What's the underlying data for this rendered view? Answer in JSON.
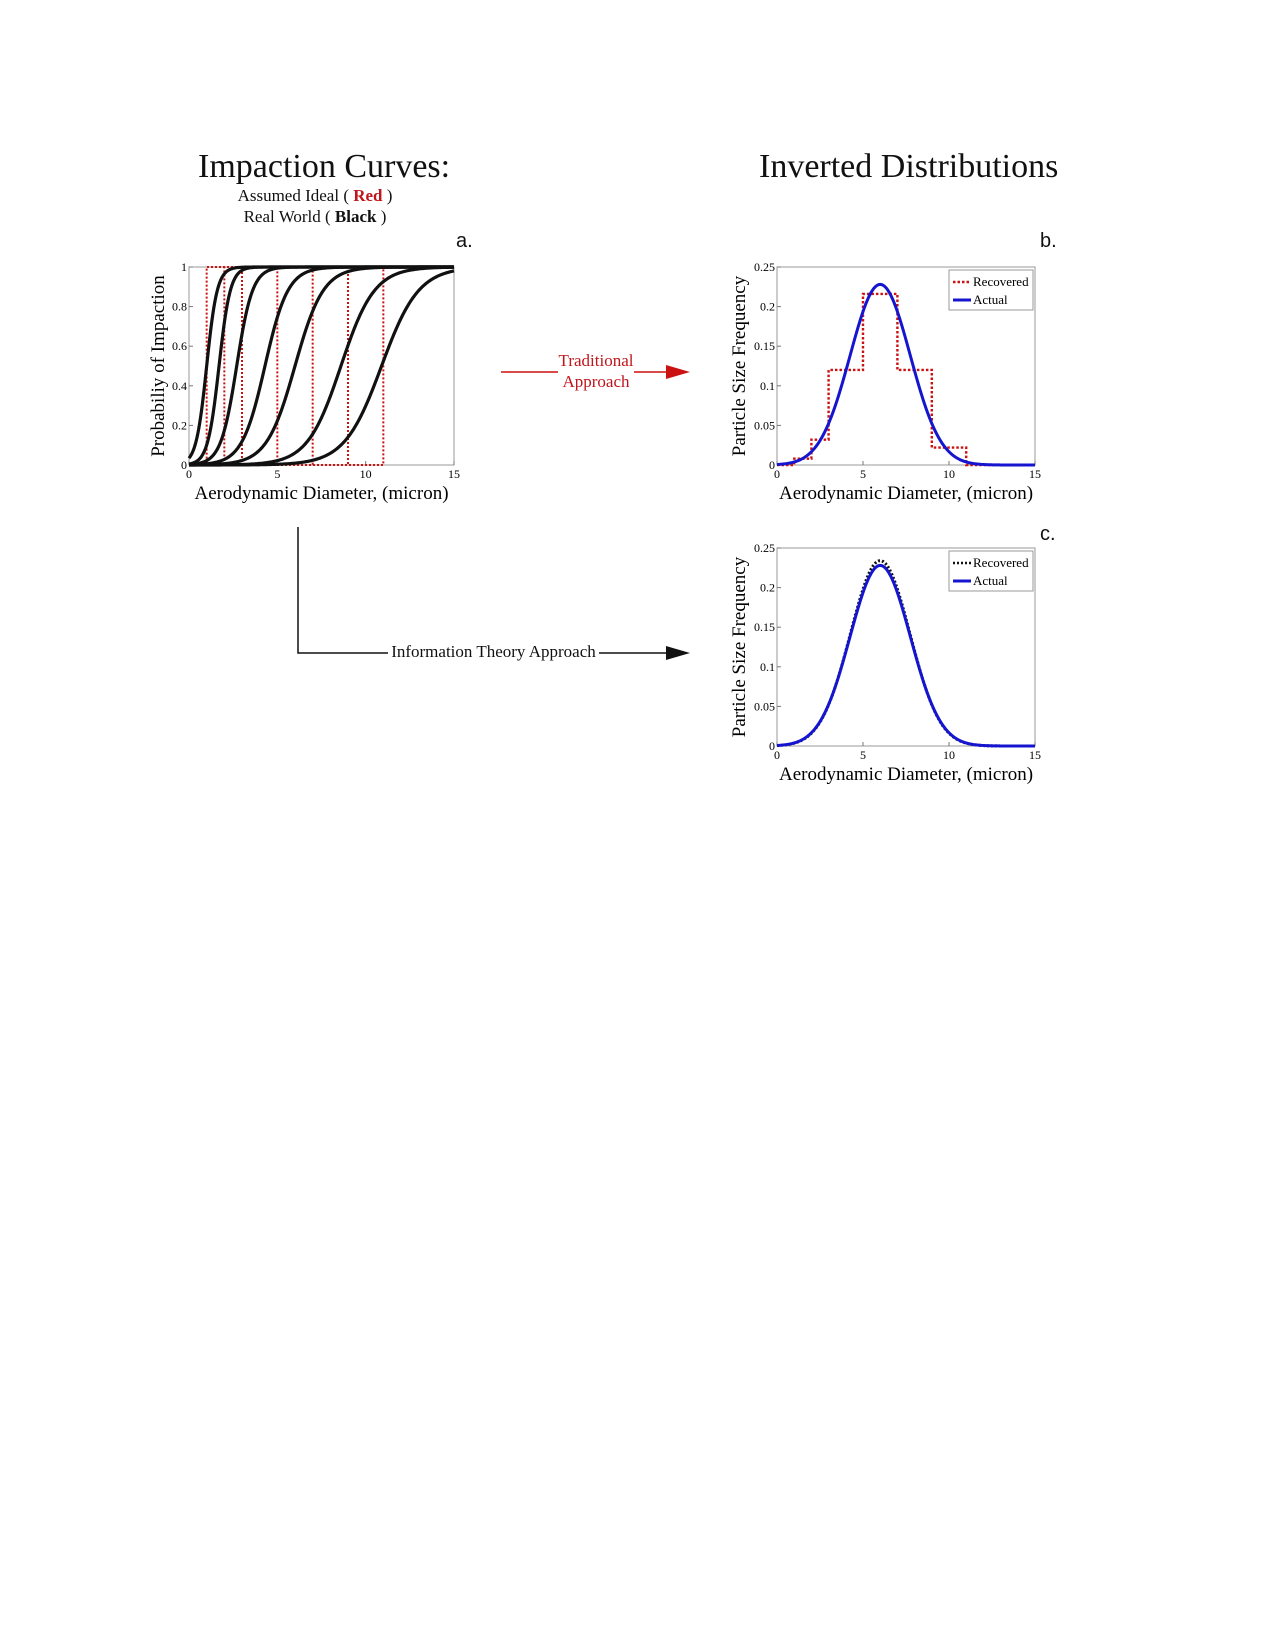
{
  "headings": {
    "left_title": "Impaction Curves:",
    "left_line1_prefix": "Assumed Ideal ( ",
    "left_line1_bold": "Red",
    "left_line1_suffix": " )",
    "left_line2_prefix": "Real World ( ",
    "left_line2_bold": "Black",
    "left_line2_suffix": " )",
    "right_title": "Inverted Distributions"
  },
  "arrows": {
    "traditional_line1": "Traditional",
    "traditional_line2": "Approach",
    "information": "Information Theory Approach"
  },
  "colors": {
    "red": "#cc1111",
    "blue": "#1515d0",
    "black": "#111111",
    "text_red": "#c0151b"
  },
  "chart_data": [
    {
      "id": "a",
      "panel_label": "a.",
      "type": "line",
      "xlabel": "Aerodynamic Diameter, (micron)",
      "ylabel": "Probabiliy of Impaction",
      "xlim": [
        0,
        15
      ],
      "ylim": [
        0,
        1
      ],
      "xticks": [
        0,
        5,
        10,
        15
      ],
      "yticks": [
        0,
        0.2,
        0.4,
        0.6,
        0.8,
        1
      ],
      "grid": false,
      "series": [
        {
          "style": "red-dotted-step",
          "cutoffs": [
            1,
            2,
            3,
            5,
            7,
            9,
            11
          ]
        },
        {
          "style": "black-sigmoid",
          "d50": [
            1,
            1.7,
            2.7,
            4.3,
            6,
            8.6,
            10.9
          ],
          "widths": [
            0.3,
            0.32,
            0.45,
            0.65,
            0.8,
            0.95,
            1.05
          ]
        }
      ]
    },
    {
      "id": "b",
      "panel_label": "b.",
      "type": "line",
      "xlabel": "Aerodynamic Diameter, (micron)",
      "ylabel": "Particle Size Frequency",
      "xlim": [
        0,
        15
      ],
      "ylim": [
        0,
        0.25
      ],
      "xticks": [
        0,
        5,
        10,
        15
      ],
      "yticks": [
        0,
        0.05,
        0.1,
        0.15,
        0.2,
        0.25
      ],
      "legend_position": "top-right",
      "series": [
        {
          "name": "Recovered",
          "style": "red-dotted",
          "edges": [
            0,
            1,
            2,
            3,
            5,
            7,
            9,
            11,
            15
          ],
          "values": [
            0.0,
            0.008,
            0.032,
            0.12,
            0.216,
            0.12,
            0.022,
            0.0
          ]
        },
        {
          "name": "Actual",
          "style": "blue-solid",
          "mean": 6,
          "sd": 1.75,
          "peak": 0.228
        }
      ]
    },
    {
      "id": "c",
      "panel_label": "c.",
      "type": "line",
      "xlabel": "Aerodynamic Diameter, (micron)",
      "ylabel": "Particle Size Frequency",
      "xlim": [
        0,
        15
      ],
      "ylim": [
        0,
        0.25
      ],
      "xticks": [
        0,
        5,
        10,
        15
      ],
      "yticks": [
        0,
        0.05,
        0.1,
        0.15,
        0.2,
        0.25
      ],
      "legend_position": "top-right",
      "series": [
        {
          "name": "Recovered",
          "style": "black-dotted",
          "mean": 6,
          "sd": 1.73,
          "peak": 0.234
        },
        {
          "name": "Actual",
          "style": "blue-solid",
          "mean": 6,
          "sd": 1.75,
          "peak": 0.228
        }
      ]
    }
  ]
}
